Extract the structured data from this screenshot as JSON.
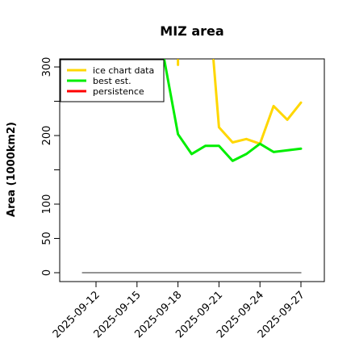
{
  "chart_data": {
    "type": "line",
    "title": "MIZ area",
    "xlabel": "",
    "ylabel": "Area (1000km2)",
    "ylim": [
      0,
      310
    ],
    "y_ticks": [
      0,
      50,
      100,
      200,
      300
    ],
    "x_tick_labels": [
      "2025-09-12",
      "2025-09-15",
      "2025-09-18",
      "2025-09-21",
      "2025-09-24",
      "2025-09-27"
    ],
    "x_range": [
      "2025-09-10",
      "2025-09-27"
    ],
    "grid": false,
    "legend": {
      "placement": "top-left",
      "entries": [
        "ice chart data",
        "best est.",
        "persistence"
      ]
    },
    "series": [
      {
        "name": "ice chart data",
        "color": "#FFD700",
        "points": [
          [
            "2025-09-18",
            310
          ],
          [
            "2025-09-18",
            303
          ]
        ]
      },
      {
        "name": "ice chart data",
        "color": "#FFD700",
        "points": [
          [
            "2025-09-20.6",
            310
          ],
          [
            "2025-09-21",
            212
          ],
          [
            "2025-09-22",
            190
          ],
          [
            "2025-09-23",
            195
          ],
          [
            "2025-09-24",
            188
          ],
          [
            "2025-09-25",
            243
          ],
          [
            "2025-09-26",
            223
          ],
          [
            "2025-09-27",
            248
          ]
        ]
      },
      {
        "name": "best est.",
        "color": "#00EE00",
        "points": [
          [
            "2025-09-17",
            310
          ],
          [
            "2025-09-18",
            202
          ],
          [
            "2025-09-19",
            173
          ],
          [
            "2025-09-20",
            185
          ],
          [
            "2025-09-21",
            185
          ],
          [
            "2025-09-22",
            163
          ],
          [
            "2025-09-23",
            173
          ],
          [
            "2025-09-24",
            188
          ],
          [
            "2025-09-25",
            176
          ],
          [
            "2025-09-27",
            181
          ]
        ]
      },
      {
        "name": "persistence",
        "color": "#FF0000",
        "points": []
      },
      {
        "name": "",
        "color": "#555555",
        "points": [
          [
            "2025-09-11",
            0
          ],
          [
            "2025-09-27",
            0
          ]
        ]
      }
    ]
  }
}
